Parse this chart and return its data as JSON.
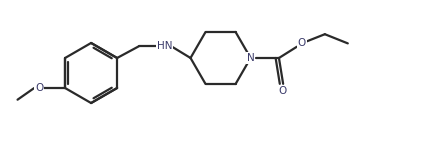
{
  "background_color": "#ffffff",
  "line_color": "#2a2a2a",
  "atom_color": "#3a3a6a",
  "bond_width": 1.6,
  "figsize": [
    4.45,
    1.46
  ],
  "dpi": 100,
  "xlim": [
    0,
    10.5
  ],
  "ylim": [
    0,
    3.5
  ]
}
